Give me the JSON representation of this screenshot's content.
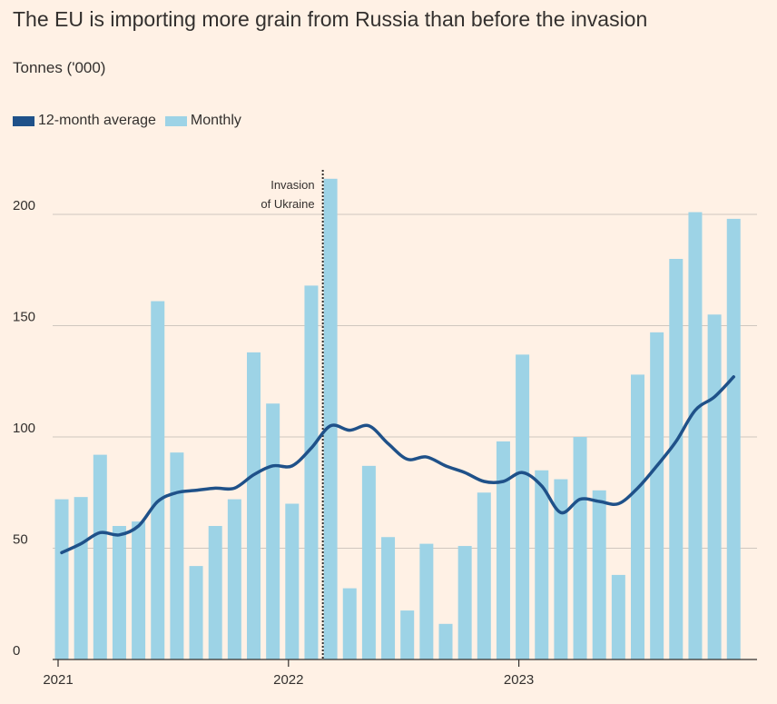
{
  "title": "The EU is importing more grain from Russia than before the invasion",
  "subtitle": "Tonnes ('000)",
  "colors": {
    "background": "#fff1e5",
    "bar": "#9dd3e6",
    "line": "#1f5189",
    "grid": "#cfc7bf",
    "axis": "#33302e",
    "text": "#33302e"
  },
  "legend": [
    {
      "label": "12-month average",
      "color": "#1f5189"
    },
    {
      "label": "Monthly",
      "color": "#9dd3e6"
    }
  ],
  "annotation": {
    "line1": "Invasion",
    "line2": "of Ukraine",
    "month_index": 13.6
  },
  "chart_data": {
    "type": "bar",
    "title": "The EU is importing more grain from Russia than before the invasion",
    "ylabel": "Tonnes ('000)",
    "xlabel": "",
    "ylim": [
      0,
      220
    ],
    "yticks": [
      0,
      50,
      100,
      150,
      200
    ],
    "grid": true,
    "legend_position": "top-left",
    "x_tick_labels": [
      {
        "label": "2021",
        "month_index": 0
      },
      {
        "label": "2022",
        "month_index": 12
      },
      {
        "label": "2023",
        "month_index": 24
      }
    ],
    "categories": [
      "Jan 2021",
      "Feb 2021",
      "Mar 2021",
      "Apr 2021",
      "May 2021",
      "Jun 2021",
      "Jul 2021",
      "Aug 2021",
      "Sep 2021",
      "Oct 2021",
      "Nov 2021",
      "Dec 2021",
      "Jan 2022",
      "Feb 2022",
      "Mar 2022",
      "Apr 2022",
      "May 2022",
      "Jun 2022",
      "Jul 2022",
      "Aug 2022",
      "Sep 2022",
      "Oct 2022",
      "Nov 2022",
      "Dec 2022",
      "Jan 2023",
      "Feb 2023",
      "Mar 2023",
      "Apr 2023",
      "May 2023",
      "Jun 2023",
      "Jul 2023",
      "Aug 2023",
      "Sep 2023",
      "Oct 2023",
      "Nov 2023",
      "Dec 2023"
    ],
    "series": [
      {
        "name": "Monthly",
        "type": "bar",
        "values": [
          72,
          73,
          92,
          60,
          62,
          161,
          93,
          42,
          60,
          72,
          138,
          115,
          70,
          168,
          216,
          32,
          87,
          55,
          22,
          52,
          16,
          51,
          75,
          98,
          137,
          85,
          81,
          100,
          76,
          38,
          128,
          147,
          180,
          201,
          155,
          198
        ]
      },
      {
        "name": "12-month average",
        "type": "line",
        "values": [
          48,
          52,
          57,
          56,
          60,
          71,
          75,
          76,
          77,
          77,
          83,
          87,
          87,
          95,
          105,
          103,
          105,
          97,
          90,
          91,
          87,
          84,
          80,
          80,
          84,
          78,
          66,
          72,
          71,
          70,
          77,
          87,
          98,
          112,
          118,
          127
        ]
      }
    ]
  }
}
